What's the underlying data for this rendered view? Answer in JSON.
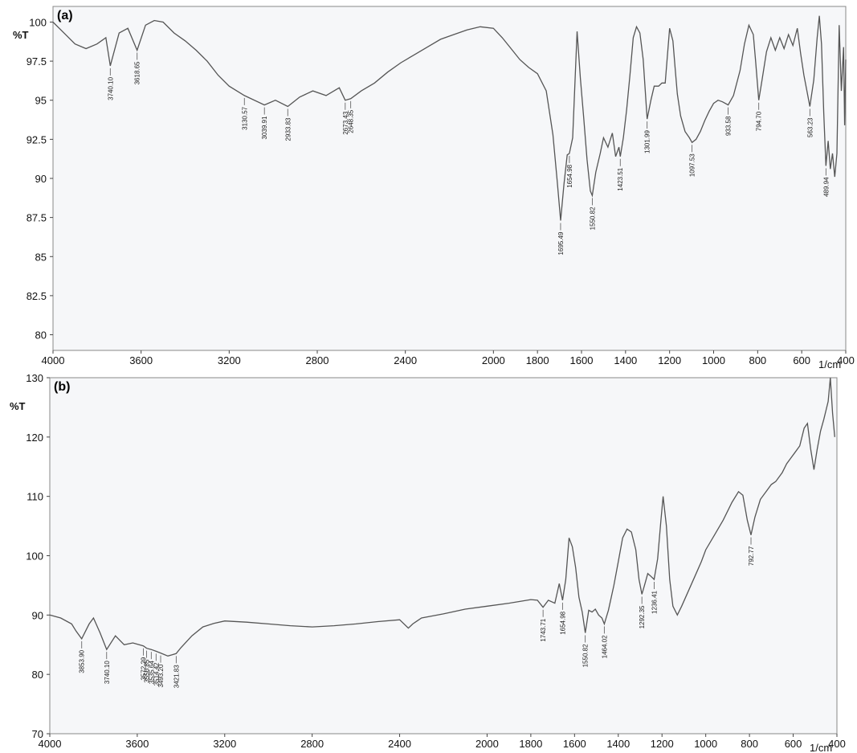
{
  "chart_data": [
    {
      "type": "line",
      "panel_label": "(a)",
      "ylabel": "%T",
      "xlabel": "1/cm",
      "xlim": [
        4000,
        400
      ],
      "ylim": [
        79,
        101
      ],
      "x_ticks": [
        4000,
        3600,
        3200,
        2800,
        2400,
        2000,
        1800,
        1600,
        1400,
        1200,
        1000,
        800,
        600,
        400
      ],
      "x_tick_labels": [
        "4000",
        "3600",
        "3200",
        "2800",
        "2400",
        "2000",
        "1800",
        "1600",
        "1400",
        "1200",
        "1000",
        "800",
        "600",
        "400"
      ],
      "y_ticks": [
        80,
        82.5,
        85,
        87.5,
        90,
        92.5,
        95,
        97.5,
        100
      ],
      "y_tick_labels": [
        "80",
        "82.5",
        "85",
        "87.5",
        "90",
        "92.5",
        "95",
        "97.5",
        "100"
      ],
      "series": [
        {
          "x": [
            4000,
            3950,
            3900,
            3850,
            3800,
            3760,
            3740,
            3700,
            3660,
            3618,
            3580,
            3540,
            3500,
            3450,
            3400,
            3350,
            3300,
            3250,
            3200,
            3131,
            3040,
            2990,
            2934,
            2880,
            2820,
            2760,
            2700,
            2673,
            2648,
            2600,
            2540,
            2480,
            2420,
            2360,
            2300,
            2240,
            2180,
            2120,
            2060,
            2000,
            1960,
            1920,
            1880,
            1840,
            1800,
            1760,
            1730,
            1710,
            1695,
            1680,
            1665,
            1655,
            1640,
            1620,
            1605,
            1590,
            1575,
            1560,
            1551,
            1535,
            1515,
            1500,
            1480,
            1460,
            1445,
            1430,
            1424,
            1410,
            1395,
            1380,
            1365,
            1350,
            1335,
            1320,
            1302,
            1285,
            1270,
            1250,
            1235,
            1220,
            1200,
            1185,
            1175,
            1165,
            1150,
            1130,
            1110,
            1098,
            1080,
            1060,
            1040,
            1020,
            1000,
            980,
            960,
            934,
            910,
            880,
            860,
            840,
            820,
            810,
            795,
            780,
            760,
            740,
            720,
            700,
            680,
            660,
            640,
            620,
            605,
            590,
            575,
            563,
            545,
            530,
            520,
            510,
            500,
            490,
            480,
            470,
            460,
            450,
            440,
            430,
            420,
            410,
            405,
            400
          ],
          "y": [
            100,
            99.3,
            98.6,
            98.3,
            98.6,
            99.0,
            97.2,
            99.3,
            99.6,
            98.2,
            99.8,
            100.1,
            100.0,
            99.3,
            98.8,
            98.2,
            97.5,
            96.6,
            95.9,
            95.3,
            94.7,
            95.0,
            94.6,
            95.2,
            95.6,
            95.3,
            95.8,
            95.0,
            95.1,
            95.6,
            96.1,
            96.8,
            97.4,
            97.9,
            98.4,
            98.9,
            99.2,
            99.5,
            99.7,
            99.6,
            99.0,
            98.3,
            97.6,
            97.1,
            96.7,
            95.6,
            92.8,
            89.8,
            87.3,
            89.6,
            91.5,
            91.6,
            92.6,
            99.4,
            96.4,
            93.9,
            91.2,
            89.2,
            88.9,
            90.4,
            91.6,
            92.6,
            92.0,
            92.9,
            91.4,
            92.0,
            91.4,
            92.6,
            94.4,
            96.6,
            99.0,
            99.7,
            99.3,
            97.6,
            93.8,
            95.0,
            95.9,
            95.9,
            96.1,
            96.1,
            99.6,
            98.8,
            97.1,
            95.4,
            94.0,
            93.0,
            92.6,
            92.3,
            92.5,
            93.0,
            93.7,
            94.3,
            94.8,
            95.0,
            94.9,
            94.7,
            95.3,
            96.9,
            98.6,
            99.8,
            99.2,
            97.6,
            95.0,
            96.3,
            98.1,
            99.0,
            98.2,
            99.0,
            98.3,
            99.2,
            98.5,
            99.6,
            98.0,
            96.6,
            95.5,
            94.6,
            96.3,
            99.0,
            100.4,
            98.6,
            94.2,
            90.8,
            92.4,
            90.6,
            91.6,
            90.1,
            91.6,
            99.8,
            95.6,
            98.4,
            93.4,
            97.6
          ]
        }
      ],
      "annotations": [
        {
          "x": 3740,
          "y": 97.2,
          "label": "3740.10"
        },
        {
          "x": 3618,
          "y": 98.2,
          "label": "3618.65"
        },
        {
          "x": 3131,
          "y": 95.3,
          "label": "3130.57"
        },
        {
          "x": 3040,
          "y": 94.7,
          "label": "3039.91"
        },
        {
          "x": 2934,
          "y": 94.6,
          "label": "2933.83"
        },
        {
          "x": 2673,
          "y": 95.0,
          "label": "2673.43"
        },
        {
          "x": 2648,
          "y": 95.1,
          "label": "2648.35"
        },
        {
          "x": 1695,
          "y": 87.3,
          "label": "1695.49"
        },
        {
          "x": 1655,
          "y": 91.6,
          "label": "1654.98"
        },
        {
          "x": 1551,
          "y": 88.9,
          "label": "1550.82"
        },
        {
          "x": 1424,
          "y": 91.4,
          "label": "1423.51"
        },
        {
          "x": 1302,
          "y": 93.8,
          "label": "1301.99"
        },
        {
          "x": 1098,
          "y": 92.3,
          "label": "1097.53"
        },
        {
          "x": 934,
          "y": 94.7,
          "label": "933.58"
        },
        {
          "x": 795,
          "y": 95.0,
          "label": "794.70"
        },
        {
          "x": 563,
          "y": 94.6,
          "label": "563.23"
        },
        {
          "x": 490,
          "y": 90.8,
          "label": "489.94"
        }
      ]
    },
    {
      "type": "line",
      "panel_label": "(b)",
      "ylabel": "%T",
      "xlabel": "1/cm",
      "xlim": [
        4000,
        400
      ],
      "ylim": [
        70,
        130
      ],
      "x_ticks": [
        4000,
        3600,
        3200,
        2800,
        2400,
        2000,
        1800,
        1600,
        1400,
        1200,
        1000,
        800,
        600,
        400
      ],
      "x_tick_labels": [
        "4000",
        "3600",
        "3200",
        "2800",
        "2400",
        "2000",
        "1800",
        "1600",
        "1400",
        "1200",
        "1000",
        "800",
        "600",
        "400"
      ],
      "y_ticks": [
        70,
        80,
        90,
        100,
        110,
        120,
        130
      ],
      "y_tick_labels": [
        "70",
        "80",
        "90",
        "100",
        "110",
        "120",
        "130"
      ],
      "series": [
        {
          "x": [
            4000,
            3950,
            3900,
            3880,
            3854,
            3820,
            3800,
            3770,
            3740,
            3700,
            3660,
            3620,
            3572,
            3557,
            3536,
            3514,
            3493,
            3460,
            3440,
            3422,
            3400,
            3350,
            3300,
            3250,
            3200,
            3100,
            3000,
            2900,
            2800,
            2700,
            2600,
            2500,
            2400,
            2360,
            2340,
            2320,
            2300,
            2200,
            2100,
            2000,
            1900,
            1850,
            1800,
            1770,
            1744,
            1720,
            1690,
            1670,
            1655,
            1640,
            1625,
            1610,
            1595,
            1580,
            1565,
            1551,
            1535,
            1520,
            1505,
            1490,
            1475,
            1464,
            1445,
            1420,
            1400,
            1380,
            1360,
            1340,
            1320,
            1305,
            1292,
            1280,
            1265,
            1250,
            1236,
            1220,
            1205,
            1195,
            1180,
            1165,
            1150,
            1130,
            1110,
            1080,
            1050,
            1020,
            1000,
            960,
            920,
            880,
            850,
            830,
            810,
            793,
            775,
            750,
            720,
            700,
            680,
            650,
            630,
            610,
            590,
            570,
            550,
            535,
            520,
            505,
            490,
            475,
            460,
            450,
            440,
            430,
            420,
            410
          ],
          "y": [
            90,
            89.5,
            88.5,
            87.3,
            86.0,
            88.5,
            89.5,
            87.0,
            84.2,
            86.5,
            85.0,
            85.3,
            84.8,
            84.4,
            84.2,
            83.9,
            83.6,
            83.1,
            83.3,
            83.5,
            84.5,
            86.5,
            88.0,
            88.6,
            89.0,
            88.8,
            88.5,
            88.2,
            88.0,
            88.2,
            88.5,
            88.9,
            89.2,
            87.8,
            88.5,
            89.0,
            89.5,
            90.2,
            91.0,
            91.5,
            92.0,
            92.3,
            92.6,
            92.5,
            91.3,
            92.5,
            92.0,
            95.3,
            92.5,
            96.0,
            103.0,
            101.5,
            98.0,
            93.0,
            90.5,
            87.0,
            90.8,
            90.5,
            91.0,
            90.0,
            89.5,
            88.5,
            90.8,
            95.0,
            99.0,
            103.0,
            104.5,
            104.0,
            101.0,
            96.0,
            93.5,
            95.0,
            97.0,
            96.5,
            96.0,
            99.5,
            106.0,
            110.0,
            105.0,
            96.0,
            91.5,
            90.0,
            91.5,
            94.0,
            96.5,
            99.0,
            101.0,
            103.5,
            106.0,
            109.0,
            110.8,
            110.2,
            106.0,
            103.5,
            106.5,
            109.5,
            111.0,
            112.0,
            112.5,
            114.0,
            115.5,
            116.5,
            117.5,
            118.5,
            121.5,
            122.3,
            118.0,
            114.5,
            118.0,
            121.0,
            123.0,
            124.5,
            126.0,
            130.0,
            124.0,
            120.0
          ]
        }
      ],
      "annotations": [
        {
          "x": 3854,
          "y": 86.0,
          "label": "3853.90"
        },
        {
          "x": 3740,
          "y": 84.2,
          "label": "3740.10"
        },
        {
          "x": 3572,
          "y": 84.8,
          "label": "3572.29"
        },
        {
          "x": 3557,
          "y": 84.4,
          "label": "3556.85"
        },
        {
          "x": 3536,
          "y": 84.2,
          "label": "3535.64"
        },
        {
          "x": 3514,
          "y": 83.9,
          "label": "3514.42"
        },
        {
          "x": 3493,
          "y": 83.6,
          "label": "3493.20"
        },
        {
          "x": 3422,
          "y": 83.5,
          "label": "3421.83"
        },
        {
          "x": 1744,
          "y": 91.3,
          "label": "1743.71"
        },
        {
          "x": 1655,
          "y": 92.5,
          "label": "1654.98"
        },
        {
          "x": 1551,
          "y": 87.0,
          "label": "1550.82"
        },
        {
          "x": 1464,
          "y": 88.5,
          "label": "1464.02"
        },
        {
          "x": 1292,
          "y": 93.5,
          "label": "1292.35"
        },
        {
          "x": 1236,
          "y": 96.0,
          "label": "1236.41"
        },
        {
          "x": 793,
          "y": 103.5,
          "label": "792.77"
        }
      ]
    }
  ]
}
